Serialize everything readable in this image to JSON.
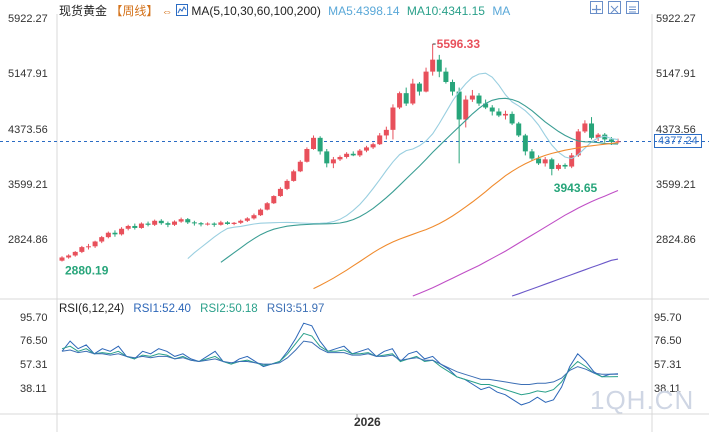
{
  "header": {
    "title": "现货黄金",
    "period": "【周线】",
    "ma_label": "MA(5,10,30,60,100,200)",
    "ma5": "MA5:4398.14",
    "ma10": "MA10:4341.15",
    "ma_extra": "MA"
  },
  "rsi_header": {
    "label": "RSI(6,12,24)",
    "rsi1": "RSI1:52.40",
    "rsi2": "RSI2:50.18",
    "rsi3": "RSI3:51.97"
  },
  "colors": {
    "up": "#e8505b",
    "down": "#27a57a",
    "ma5": "#9acfe0",
    "ma10": "#3b9e94",
    "ma30": "#f08b2e",
    "ma60": "#c04fc6",
    "ma100": "#6b58c9",
    "rsi1": "#2c66b8",
    "rsi2": "#2aa08a",
    "rsi3": "#3c6fb5",
    "title": "#222222",
    "period": "#d4731c",
    "ma_text": "#2b6cc4"
  },
  "chart_data": {
    "type": "candlestick",
    "x_label_mid": "2026",
    "price_axis": {
      "ylim": [
        2437,
        5922.27
      ],
      "ticks": [
        "5922.27",
        "5147.91",
        "4373.56",
        "3599.21",
        "2824.86"
      ]
    },
    "current_price": "4377.24",
    "dashed_line": 4373.56,
    "annotations": {
      "high": "5596.33",
      "low_recent": "3943.65",
      "low_left": "2880.19"
    },
    "candles": [
      [
        2880,
        2920,
        2870,
        2935
      ],
      [
        2920,
        2945,
        2905,
        2960
      ],
      [
        2945,
        2990,
        2930,
        3000
      ],
      [
        2990,
        3050,
        2975,
        3065
      ],
      [
        3050,
        3060,
        3020,
        3090
      ],
      [
        3060,
        3120,
        3040,
        3130
      ],
      [
        3120,
        3175,
        3100,
        3190
      ],
      [
        3175,
        3230,
        3160,
        3245
      ],
      [
        3230,
        3210,
        3180,
        3260
      ],
      [
        3210,
        3280,
        3195,
        3300
      ],
      [
        3280,
        3315,
        3260,
        3330
      ],
      [
        3315,
        3290,
        3270,
        3345
      ],
      [
        3290,
        3345,
        3280,
        3360
      ],
      [
        3345,
        3330,
        3310,
        3370
      ],
      [
        3330,
        3380,
        3315,
        3395
      ],
      [
        3380,
        3350,
        3330,
        3400
      ],
      [
        3350,
        3330,
        3300,
        3370
      ],
      [
        3330,
        3370,
        3315,
        3385
      ],
      [
        3370,
        3400,
        3355,
        3420
      ],
      [
        3400,
        3360,
        3340,
        3415
      ],
      [
        3360,
        3350,
        3320,
        3380
      ],
      [
        3350,
        3335,
        3310,
        3365
      ],
      [
        3335,
        3345,
        3320,
        3360
      ],
      [
        3345,
        3330,
        3305,
        3360
      ],
      [
        3330,
        3360,
        3320,
        3380
      ],
      [
        3360,
        3340,
        3330,
        3375
      ],
      [
        3340,
        3355,
        3325,
        3365
      ],
      [
        3355,
        3380,
        3340,
        3395
      ],
      [
        3380,
        3410,
        3365,
        3425
      ],
      [
        3410,
        3450,
        3395,
        3470
      ],
      [
        3450,
        3520,
        3440,
        3535
      ],
      [
        3520,
        3600,
        3510,
        3615
      ],
      [
        3600,
        3690,
        3590,
        3700
      ],
      [
        3690,
        3780,
        3680,
        3800
      ],
      [
        3780,
        3880,
        3765,
        3900
      ],
      [
        3880,
        4000,
        3870,
        4020
      ],
      [
        4000,
        4120,
        3990,
        4140
      ],
      [
        4120,
        4280,
        4110,
        4300
      ],
      [
        4280,
        4420,
        4270,
        4450
      ],
      [
        4420,
        4250,
        4210,
        4440
      ],
      [
        4250,
        4100,
        4050,
        4280
      ],
      [
        4100,
        4150,
        4040,
        4180
      ],
      [
        4150,
        4180,
        4130,
        4200
      ],
      [
        4180,
        4220,
        4160,
        4240
      ],
      [
        4220,
        4200,
        4190,
        4250
      ],
      [
        4200,
        4260,
        4180,
        4280
      ],
      [
        4260,
        4300,
        4240,
        4320
      ],
      [
        4300,
        4340,
        4280,
        4360
      ],
      [
        4340,
        4450,
        4330,
        4480
      ],
      [
        4450,
        4520,
        4400,
        4560
      ],
      [
        4520,
        4800,
        4400,
        4840
      ],
      [
        4800,
        4980,
        4780,
        5000
      ],
      [
        4980,
        4850,
        4820,
        5050
      ],
      [
        4850,
        5100,
        4830,
        5160
      ],
      [
        5100,
        5000,
        4950,
        5120
      ],
      [
        5000,
        5250,
        4990,
        5300
      ],
      [
        5250,
        5400,
        5200,
        5596
      ],
      [
        5400,
        5250,
        5180,
        5460
      ],
      [
        5250,
        5120,
        5100,
        5300
      ],
      [
        5120,
        5000,
        4950,
        5150
      ],
      [
        5000,
        4650,
        4100,
        5050
      ],
      [
        4650,
        4900,
        4550,
        4950
      ],
      [
        4900,
        4950,
        4870,
        5020
      ],
      [
        4950,
        4850,
        4820,
        4980
      ],
      [
        4850,
        4800,
        4780,
        4900
      ],
      [
        4800,
        4750,
        4700,
        4830
      ],
      [
        4750,
        4700,
        4680,
        4790
      ],
      [
        4700,
        4720,
        4650,
        4760
      ],
      [
        4720,
        4600,
        4580,
        4750
      ],
      [
        4600,
        4450,
        4430,
        4620
      ],
      [
        4450,
        4250,
        4200,
        4470
      ],
      [
        4250,
        4160,
        4130,
        4280
      ],
      [
        4160,
        4100,
        4080,
        4200
      ],
      [
        4100,
        4150,
        4060,
        4180
      ],
      [
        4150,
        4030,
        3950,
        4170
      ],
      [
        4030,
        4080,
        4010,
        4100
      ],
      [
        4080,
        4060,
        4030,
        4100
      ],
      [
        4060,
        4200,
        4040,
        4230
      ],
      [
        4200,
        4500,
        4180,
        4530
      ],
      [
        4500,
        4600,
        4480,
        4640
      ],
      [
        4600,
        4420,
        4400,
        4680
      ],
      [
        4420,
        4460,
        4380,
        4480
      ],
      [
        4460,
        4400,
        4360,
        4480
      ],
      [
        4400,
        4370,
        4330,
        4430
      ],
      [
        4370,
        4377,
        4345,
        4410
      ]
    ],
    "ma_series": [
      {
        "name": "MA5",
        "key": "ma5",
        "values": [
          2906,
          2980,
          3045,
          3110,
          3175,
          3235,
          3285,
          3300,
          3310,
          3325,
          3340,
          3350,
          3354,
          3356,
          3359,
          3360,
          3357,
          3352,
          3348,
          3346,
          3349,
          3354,
          3370,
          3398,
          3445,
          3510,
          3585,
          3680,
          3785,
          3895,
          4010,
          4120,
          4210,
          4260,
          4280,
          4320,
          4380,
          4470,
          4600,
          4740,
          4880,
          5000,
          5100,
          5180,
          5220,
          5230,
          5180,
          5080,
          4960,
          4870,
          4820,
          4760,
          4680,
          4580,
          4450,
          4330,
          4240,
          4180,
          4160,
          4210,
          4290,
          4370,
          4420,
          4440,
          4410,
          4398
        ]
      },
      {
        "name": "MA10",
        "key": "ma10",
        "values": [
          2860,
          2920,
          2980,
          3040,
          3100,
          3155,
          3205,
          3245,
          3275,
          3295,
          3312,
          3322,
          3330,
          3334,
          3338,
          3340,
          3342,
          3345,
          3352,
          3368,
          3395,
          3432,
          3480,
          3535,
          3600,
          3670,
          3745,
          3825,
          3905,
          3985,
          4065,
          4150,
          4240,
          4320,
          4400,
          4480,
          4560,
          4640,
          4720,
          4790,
          4850,
          4890,
          4910,
          4915,
          4900,
          4870,
          4820,
          4760,
          4690,
          4620,
          4560,
          4500,
          4450,
          4410,
          4380,
          4370,
          4368,
          4360,
          4350,
          4345,
          4341
        ]
      },
      {
        "name": "MA30",
        "key": "ma30",
        "values": [
          2530,
          2570,
          2615,
          2660,
          2710,
          2760,
          2815,
          2870,
          2925,
          2980,
          3030,
          3075,
          3115,
          3150,
          3180,
          3210,
          3240,
          3270,
          3305,
          3345,
          3390,
          3440,
          3495,
          3555,
          3615,
          3680,
          3745,
          3815,
          3880,
          3945,
          4000,
          4050,
          4095,
          4135,
          4170,
          4200,
          4225,
          4245,
          4265,
          4280,
          4295,
          4310,
          4320,
          4330,
          4340,
          4350,
          4360
        ]
      },
      {
        "name": "MA60",
        "key": "ma60",
        "values": [
          2437,
          2470,
          2505,
          2540,
          2580,
          2620,
          2660,
          2700,
          2740,
          2780,
          2820,
          2865,
          2910,
          2955,
          3000,
          3050,
          3100,
          3150,
          3200,
          3250,
          3300,
          3350,
          3400,
          3450,
          3495,
          3540,
          3580,
          3620,
          3655,
          3690,
          3725,
          3760
        ]
      },
      {
        "name": "MA100",
        "key": "ma100",
        "values": [
          2437,
          2465,
          2495,
          2525,
          2555,
          2585,
          2615,
          2645,
          2675,
          2705,
          2735,
          2765,
          2795,
          2825,
          2855,
          2885,
          2900
        ]
      }
    ],
    "rsi_axis": {
      "ylim": [
        24,
        100
      ],
      "ticks": [
        "95.70",
        "76.50",
        "57.31",
        "38.11"
      ]
    },
    "rsi_series": [
      {
        "name": "RSI1",
        "key": "rsi1",
        "values": [
          70,
          78,
          72,
          75,
          68,
          72,
          70,
          74,
          66,
          64,
          70,
          68,
          72,
          70,
          66,
          68,
          64,
          62,
          66,
          70,
          62,
          60,
          64,
          66,
          62,
          58,
          60,
          62,
          70,
          80,
          92,
          90,
          78,
          70,
          72,
          74,
          68,
          70,
          72,
          66,
          70,
          72,
          62,
          68,
          70,
          64,
          66,
          60,
          56,
          50,
          48,
          44,
          40,
          42,
          38,
          36,
          32,
          28,
          30,
          34,
          30,
          32,
          42,
          58,
          68,
          62,
          54,
          50,
          52,
          52.4
        ]
      },
      {
        "name": "RSI2",
        "key": "rsi2",
        "values": [
          72,
          74,
          70,
          72,
          68,
          69,
          68,
          70,
          66,
          64,
          67,
          66,
          68,
          67,
          64,
          66,
          63,
          62,
          64,
          66,
          62,
          60,
          62,
          63,
          61,
          59,
          60,
          62,
          68,
          76,
          84,
          82,
          74,
          70,
          70,
          71,
          68,
          68,
          69,
          66,
          67,
          68,
          62,
          64,
          66,
          62,
          63,
          58,
          54,
          50,
          48,
          46,
          44,
          44,
          42,
          40,
          38,
          36,
          37,
          39,
          38,
          40,
          46,
          56,
          62,
          58,
          53,
          50,
          50,
          50.18
        ]
      },
      {
        "name": "RSI3",
        "key": "rsi3",
        "values": [
          70,
          71,
          69,
          70,
          68,
          68,
          67,
          68,
          66,
          65,
          66,
          65,
          66,
          66,
          64,
          65,
          63,
          62,
          63,
          64,
          62,
          61,
          62,
          62,
          61,
          60,
          60,
          61,
          65,
          71,
          78,
          77,
          72,
          69,
          69,
          69,
          67,
          67,
          68,
          66,
          66,
          67,
          63,
          64,
          65,
          63,
          63,
          60,
          57,
          54,
          52,
          50,
          48,
          48,
          47,
          46,
          45,
          44,
          44,
          45,
          45,
          46,
          49,
          55,
          58,
          56,
          53,
          52,
          52,
          51.97
        ]
      }
    ]
  },
  "watermark": "1QH.CN"
}
